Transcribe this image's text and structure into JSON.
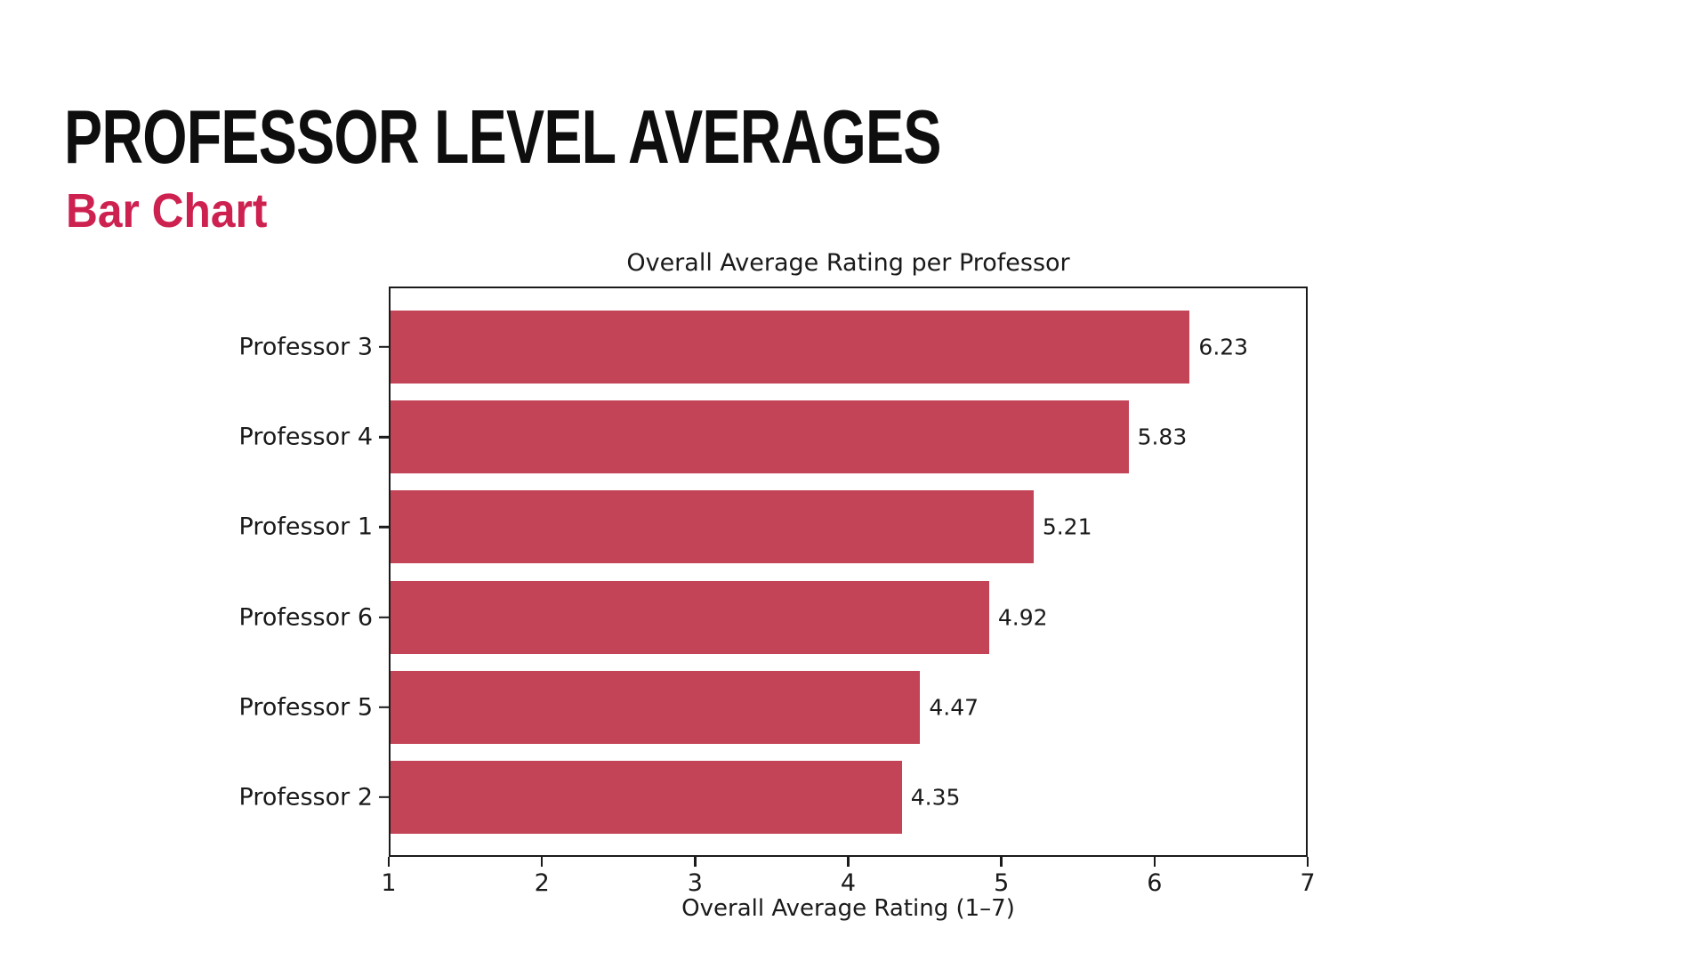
{
  "slide": {
    "title": "PROFESSOR LEVEL AVERAGES",
    "subtitle": "Bar Chart",
    "title_color": "#0e0e0e",
    "subtitle_color": "#CD2150",
    "background_color": "#ffffff"
  },
  "chart_data": {
    "type": "bar",
    "orientation": "horizontal",
    "title": "Overall Average Rating per Professor",
    "xlabel": "Overall Average Rating (1–7)",
    "ylabel": "",
    "categories": [
      "Professor 3",
      "Professor 4",
      "Professor 1",
      "Professor 6",
      "Professor 5",
      "Professor 2"
    ],
    "values": [
      6.23,
      5.83,
      5.21,
      4.92,
      4.47,
      4.35
    ],
    "value_labels": [
      "6.23",
      "5.83",
      "5.21",
      "4.92",
      "4.47",
      "4.35"
    ],
    "xlim": [
      1,
      7
    ],
    "xticks": [
      "1",
      "2",
      "3",
      "4",
      "5",
      "6",
      "7"
    ],
    "bar_color": "#C34456",
    "axis_color": "#1a1a1a",
    "text_color": "#1a1a1a",
    "grid": false,
    "legend": null
  }
}
